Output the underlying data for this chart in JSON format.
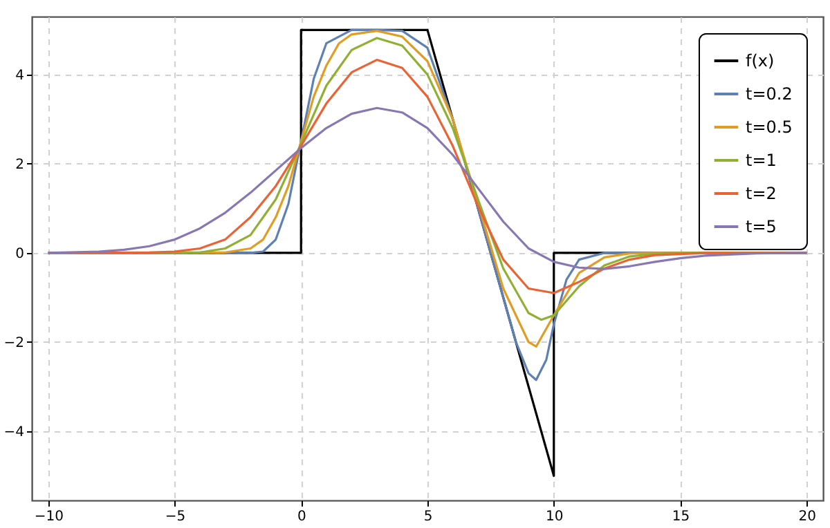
{
  "chart_data": {
    "type": "line",
    "xlim": [
      -10.65,
      20.65
    ],
    "ylim": [
      -5.55,
      5.3
    ],
    "xticks": [
      -10,
      -5,
      0,
      5,
      10,
      15,
      20
    ],
    "yticks": [
      -4,
      -2,
      0,
      2,
      4
    ],
    "grid": true,
    "legend": "top right",
    "line_style": "solid",
    "series": [
      {
        "name": "f(x)",
        "color": "#000000",
        "x": [
          -10,
          0,
          0,
          5,
          10,
          10,
          20
        ],
        "values": [
          0,
          0,
          5,
          5,
          -5,
          0,
          0
        ]
      },
      {
        "name": "t=0.2",
        "color": "#5e81b5",
        "x": [
          -10,
          -2,
          -1.5,
          -1,
          -0.5,
          0,
          0.5,
          1,
          2,
          3,
          4,
          5,
          6,
          7,
          8,
          8.5,
          9,
          9.3,
          9.7,
          10,
          10.5,
          11,
          12,
          14,
          20
        ],
        "values": [
          0,
          0,
          0.03,
          0.3,
          1.1,
          2.5,
          3.9,
          4.7,
          5,
          5,
          4.98,
          4.6,
          3,
          1,
          -1,
          -2,
          -2.7,
          -2.85,
          -2.4,
          -1.6,
          -0.6,
          -0.15,
          0,
          0,
          0
        ]
      },
      {
        "name": "t=0.5",
        "color": "#e19c24",
        "x": [
          -10,
          -3,
          -2,
          -1.5,
          -1,
          -0.5,
          0,
          0.5,
          1,
          1.5,
          2,
          3,
          4,
          5,
          6,
          7,
          8,
          9,
          9.3,
          10,
          11,
          12,
          13,
          14,
          20
        ],
        "values": [
          0,
          0.01,
          0.1,
          0.3,
          0.8,
          1.5,
          2.5,
          3.5,
          4.2,
          4.7,
          4.9,
          4.98,
          4.85,
          4.3,
          3,
          1.1,
          -0.8,
          -2,
          -2.1,
          -1.4,
          -0.45,
          -0.1,
          -0.01,
          0,
          0
        ]
      },
      {
        "name": "t=1",
        "color": "#8fb032",
        "x": [
          -10,
          -5,
          -4,
          -3,
          -2,
          -1,
          0,
          1,
          2,
          3,
          4,
          5,
          6,
          7,
          8,
          9,
          9.5,
          10,
          11,
          12,
          13,
          14,
          15,
          20
        ],
        "values": [
          0,
          0,
          0.01,
          0.1,
          0.4,
          1.2,
          2.45,
          3.75,
          4.55,
          4.82,
          4.65,
          4,
          2.8,
          1.2,
          -0.35,
          -1.35,
          -1.5,
          -1.4,
          -0.75,
          -0.28,
          -0.08,
          -0.02,
          0,
          0
        ]
      },
      {
        "name": "t=2",
        "color": "#eb6235",
        "x": [
          -10,
          -6,
          -5,
          -4,
          -3,
          -2,
          -1,
          0,
          1,
          2,
          3,
          4,
          5,
          6,
          7,
          8,
          9,
          10,
          11,
          12,
          13,
          14,
          16,
          20
        ],
        "values": [
          0,
          0.01,
          0.03,
          0.1,
          0.3,
          0.8,
          1.5,
          2.4,
          3.35,
          4.05,
          4.33,
          4.15,
          3.5,
          2.4,
          1.05,
          -0.15,
          -0.8,
          -0.9,
          -0.65,
          -0.35,
          -0.15,
          -0.05,
          0,
          0
        ]
      },
      {
        "name": "t=5",
        "color": "#8778b3",
        "x": [
          -10,
          -8,
          -7,
          -6,
          -5,
          -4,
          -3,
          -2,
          -1,
          0,
          1,
          2,
          3,
          4,
          5,
          6,
          7,
          8,
          9,
          10,
          11,
          12,
          13,
          14,
          15,
          16,
          18,
          20
        ],
        "values": [
          0,
          0.03,
          0.07,
          0.15,
          0.3,
          0.55,
          0.9,
          1.35,
          1.85,
          2.35,
          2.8,
          3.12,
          3.25,
          3.15,
          2.8,
          2.2,
          1.45,
          0.7,
          0.1,
          -0.2,
          -0.33,
          -0.36,
          -0.3,
          -0.2,
          -0.12,
          -0.06,
          -0.01,
          0
        ]
      }
    ]
  }
}
